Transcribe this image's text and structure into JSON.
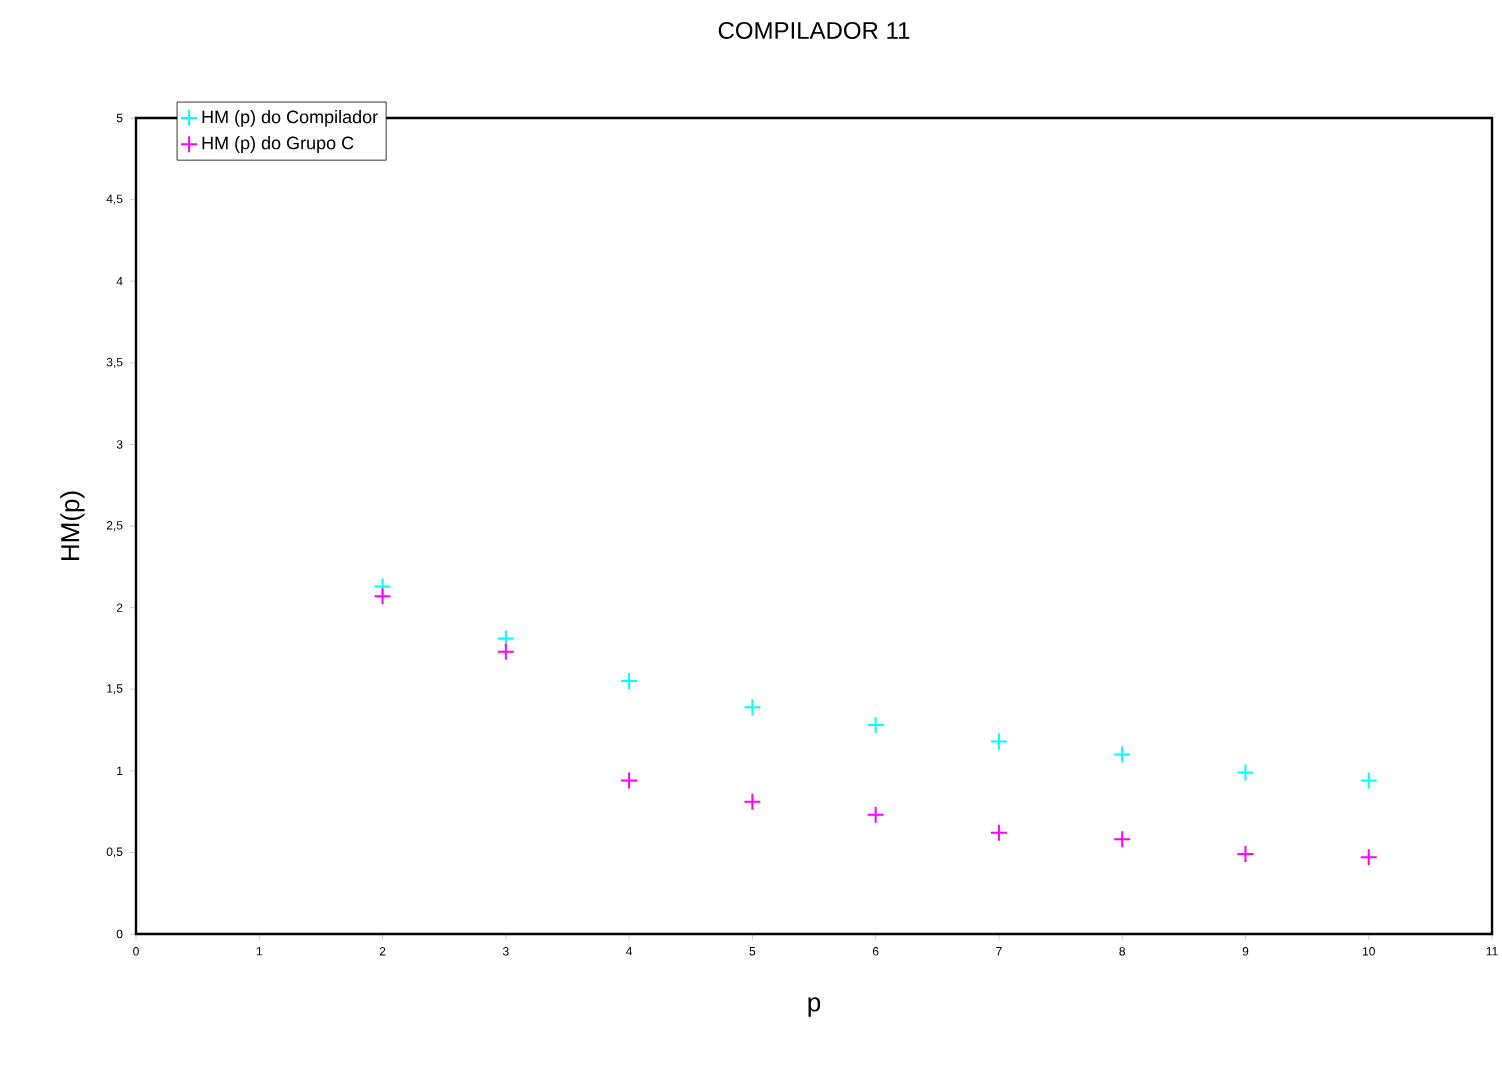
{
  "chart_data": {
    "type": "scatter",
    "title": "COMPILADOR 11",
    "xlabel": "p",
    "ylabel": "HM(p)",
    "xlim": [
      0,
      11
    ],
    "xticks": [
      0,
      1,
      2,
      3,
      4,
      5,
      6,
      7,
      8,
      9,
      10,
      11
    ],
    "ylim": [
      0,
      5
    ],
    "yticks": [
      0,
      {
        "value": 0.5,
        "label": "0,5"
      },
      1,
      {
        "value": 1.5,
        "label": "1,5"
      },
      2,
      {
        "value": 2.5,
        "label": "2,5"
      },
      3,
      {
        "value": 3.5,
        "label": "3,5"
      },
      4,
      {
        "value": 4.5,
        "label": "4,5"
      },
      5
    ],
    "x": [
      2,
      3,
      4,
      5,
      6,
      7,
      8,
      9,
      10
    ],
    "series": [
      {
        "name": "HM (p)  do Compilador",
        "color": "#00ffff",
        "values": [
          2.13,
          1.81,
          1.55,
          1.39,
          1.28,
          1.18,
          1.1,
          0.99,
          0.94
        ]
      },
      {
        "name": "HM (p) do Grupo C",
        "color": "#ff00ff",
        "values": [
          2.07,
          1.73,
          0.94,
          0.81,
          0.73,
          0.62,
          0.58,
          0.49,
          0.47
        ]
      }
    ],
    "marker": "cross",
    "legend": "top left",
    "grid": false
  }
}
